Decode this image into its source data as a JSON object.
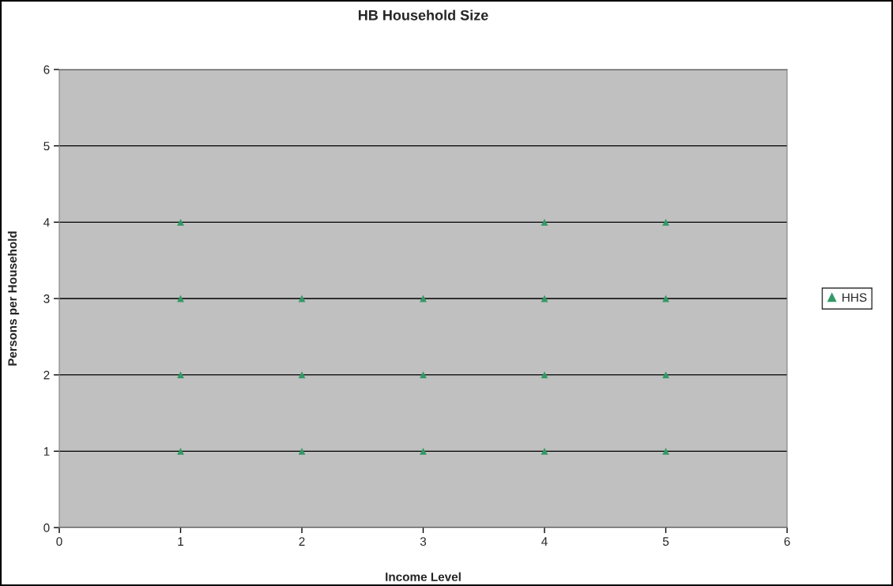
{
  "chart_data": {
    "type": "scatter",
    "title": "HB Household Size",
    "xlabel": "Income Level",
    "ylabel": "Persons per Household",
    "series": [
      {
        "name": "HHS",
        "color": "#339966",
        "x": [
          1,
          1,
          1,
          1,
          2,
          2,
          2,
          3,
          3,
          3,
          4,
          4,
          4,
          4,
          5,
          5,
          5,
          5
        ],
        "values": [
          1,
          2,
          3,
          4,
          1,
          2,
          3,
          1,
          2,
          3,
          1,
          2,
          3,
          4,
          1,
          2,
          3,
          4
        ]
      }
    ],
    "xlim": [
      0,
      6
    ],
    "ylim": [
      0,
      6
    ],
    "xticks": [
      0,
      1,
      2,
      3,
      4,
      5,
      6
    ],
    "yticks": [
      0,
      1,
      2,
      3,
      4,
      5,
      6
    ],
    "grid": "y",
    "legend": "right",
    "marker": "triangle"
  }
}
